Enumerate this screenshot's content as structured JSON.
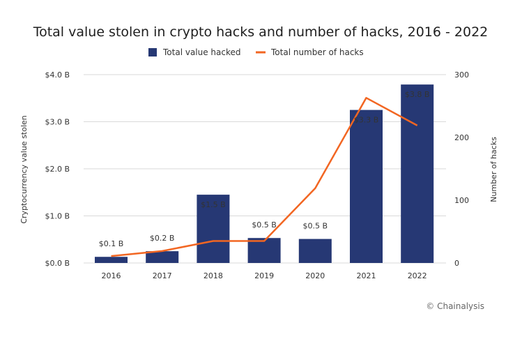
{
  "chart_data": {
    "type": "bar",
    "title": "Total value stolen in crypto hacks and number of hacks, 2016 - 2022",
    "categories": [
      "2016",
      "2017",
      "2018",
      "2019",
      "2020",
      "2021",
      "2022"
    ],
    "series": [
      {
        "name": "Total value hacked",
        "type": "bar",
        "axis": "left",
        "values": [
          0.13,
          0.25,
          1.45,
          0.53,
          0.51,
          3.25,
          3.79
        ],
        "labels": [
          "$0.1 B",
          "$0.2 B",
          "$1.5 B",
          "$0.5 B",
          "$0.5 B",
          "$3.3 B",
          "$3.8 B"
        ]
      },
      {
        "name": "Total number of hacks",
        "type": "line",
        "axis": "right",
        "values": [
          11,
          19,
          35,
          35,
          119,
          263,
          219
        ]
      }
    ],
    "y_left": {
      "label": "Cryptocurrency value stolen",
      "range": [
        0,
        4
      ],
      "ticks": [
        0,
        1,
        2,
        3,
        4
      ],
      "tick_labels": [
        "$0.0 B",
        "$1.0 B",
        "$2.0 B",
        "$3.0 B",
        "$4.0 B"
      ]
    },
    "y_right": {
      "label": "Number of hacks",
      "range": [
        0,
        300
      ],
      "ticks": [
        0,
        100,
        200,
        300
      ],
      "tick_labels": [
        "0",
        "100",
        "200",
        "300"
      ]
    },
    "grid": true,
    "legend_position": "top"
  },
  "colors": {
    "bar": "#263874",
    "line": "#f26622",
    "label_outside": "#3a4f8f",
    "label_inside": "#ffffff"
  },
  "credit": "© Chainalysis"
}
